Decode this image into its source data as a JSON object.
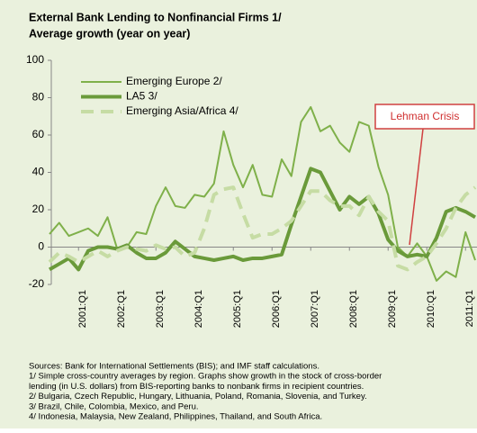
{
  "chart_data": {
    "type": "line",
    "title": "External Bank Lending to Nonfinancial Firms 1/",
    "subtitle": "Average growth (year on year)",
    "categories": [
      null,
      null,
      null,
      "2001:Q1",
      null,
      null,
      null,
      "2002:Q1",
      null,
      null,
      null,
      "2003:Q1",
      null,
      null,
      null,
      "2004:Q1",
      null,
      null,
      null,
      "2005:Q1",
      null,
      null,
      null,
      "2006:Q1",
      null,
      null,
      null,
      "2007:Q1",
      null,
      null,
      null,
      "2008:Q1",
      null,
      null,
      null,
      "2009:Q1",
      null,
      null,
      null,
      "2010:Q1",
      null,
      null,
      null,
      "2011:Q1",
      null
    ],
    "series": [
      {
        "name": "Emerging Europe 2/",
        "color": "#7fb04a",
        "width": 2,
        "dash": false,
        "values": [
          7,
          13,
          6,
          8,
          10,
          6,
          16,
          -1,
          0,
          8,
          7,
          22,
          32,
          22,
          21,
          28,
          27,
          34,
          62,
          44,
          32,
          44,
          28,
          27,
          47,
          38,
          67,
          75,
          62,
          65,
          56,
          51,
          67,
          65,
          43,
          28,
          0,
          -5,
          2,
          -5,
          -18,
          -13,
          -16,
          8,
          -7
        ]
      },
      {
        "name": "LA5 3/",
        "color": "#6a9a3a",
        "width": 4,
        "dash": false,
        "values": [
          -12,
          -9,
          -6,
          -12,
          -2,
          0,
          0,
          -1,
          1,
          -3,
          -6,
          -6,
          -3,
          3,
          -1,
          -5,
          -6,
          -7,
          -6,
          -5,
          -7,
          -6,
          -6,
          -5,
          -4,
          12,
          27,
          42,
          40,
          30,
          20,
          27,
          23,
          27,
          18,
          4,
          -2,
          -5,
          -4,
          -5,
          5,
          19,
          21,
          19,
          16
        ]
      },
      {
        "name": "Emerging Asia/Africa 4/",
        "color": "#c6dca4",
        "width": 4,
        "dash": true,
        "values": [
          -8,
          -3,
          -5,
          -8,
          -5,
          -2,
          -5,
          -2,
          0,
          -1,
          -2,
          1,
          -1,
          0,
          -5,
          -3,
          10,
          28,
          31,
          32,
          18,
          5,
          7,
          7,
          10,
          14,
          22,
          30,
          30,
          25,
          22,
          22,
          17,
          27,
          19,
          14,
          -10,
          -12,
          -8,
          -5,
          2,
          10,
          21,
          28,
          32
        ]
      }
    ],
    "ylim": [
      -20,
      100
    ],
    "yticks": [
      -20,
      0,
      20,
      40,
      60,
      80,
      100
    ],
    "annotation": "Lehman Crisis",
    "notes": [
      "Sources: Bank for International Settlements (BIS); and IMF staff calculations.",
      "1/ Simple cross-country averages by region. Graphs show growth in the stock of cross-border",
      "lending (in U.S. dollars) from BIS-reporting banks to nonbank firms in recipient countries.",
      "2/ Bulgaria, Czech Republic, Hungary, Lithuania, Poland, Romania, Slovenia, and Turkey.",
      "3/ Brazil, Chile, Colombia, Mexico, and Peru.",
      "4/ Indonesia, Malaysia, New Zealand, Philippines, Thailand, and South Africa."
    ]
  }
}
